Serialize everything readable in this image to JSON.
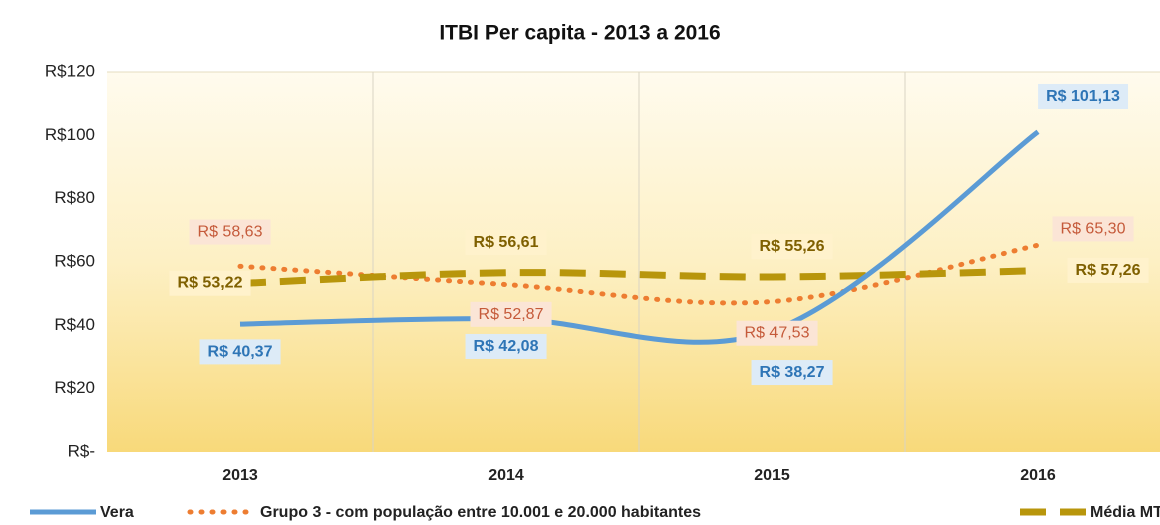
{
  "chart_data": {
    "type": "line",
    "title": "ITBI Per capita - 2013 a 2016",
    "categories": [
      "2013",
      "2014",
      "2015",
      "2016"
    ],
    "series": [
      {
        "name": "Vera",
        "color": "#5b9bd5",
        "style": "solid",
        "values": [
          40.37,
          42.08,
          38.27,
          101.13
        ],
        "value_labels": [
          "R$ 40,37",
          "R$ 42,08",
          "R$ 38,27",
          "R$ 101,13"
        ]
      },
      {
        "name": "Grupo 3 - com população entre 10.001 e 20.000 habitantes",
        "color": "#ed7d31",
        "style": "dotted",
        "values": [
          58.63,
          52.87,
          47.53,
          65.3
        ],
        "value_labels": [
          "R$ 58,63",
          "R$ 52,87",
          "R$ 47,53",
          "R$ 65,30"
        ]
      },
      {
        "name": "Média MT",
        "color": "#b8960c",
        "style": "dashed",
        "values": [
          53.22,
          56.61,
          55.26,
          57.26
        ],
        "value_labels": [
          "R$ 53,22",
          "R$ 56,61",
          "R$ 55,26",
          "R$ 57,26"
        ]
      }
    ],
    "ylim": [
      0,
      120
    ],
    "yticks": [
      {
        "value": 0,
        "label": "R$-"
      },
      {
        "value": 20,
        "label": "R$20"
      },
      {
        "value": 40,
        "label": "R$40"
      },
      {
        "value": 60,
        "label": "R$60"
      },
      {
        "value": 80,
        "label": "R$80"
      },
      {
        "value": 100,
        "label": "R$100"
      },
      {
        "value": 120,
        "label": "R$120"
      }
    ],
    "grid": true,
    "legend": "bottom"
  }
}
